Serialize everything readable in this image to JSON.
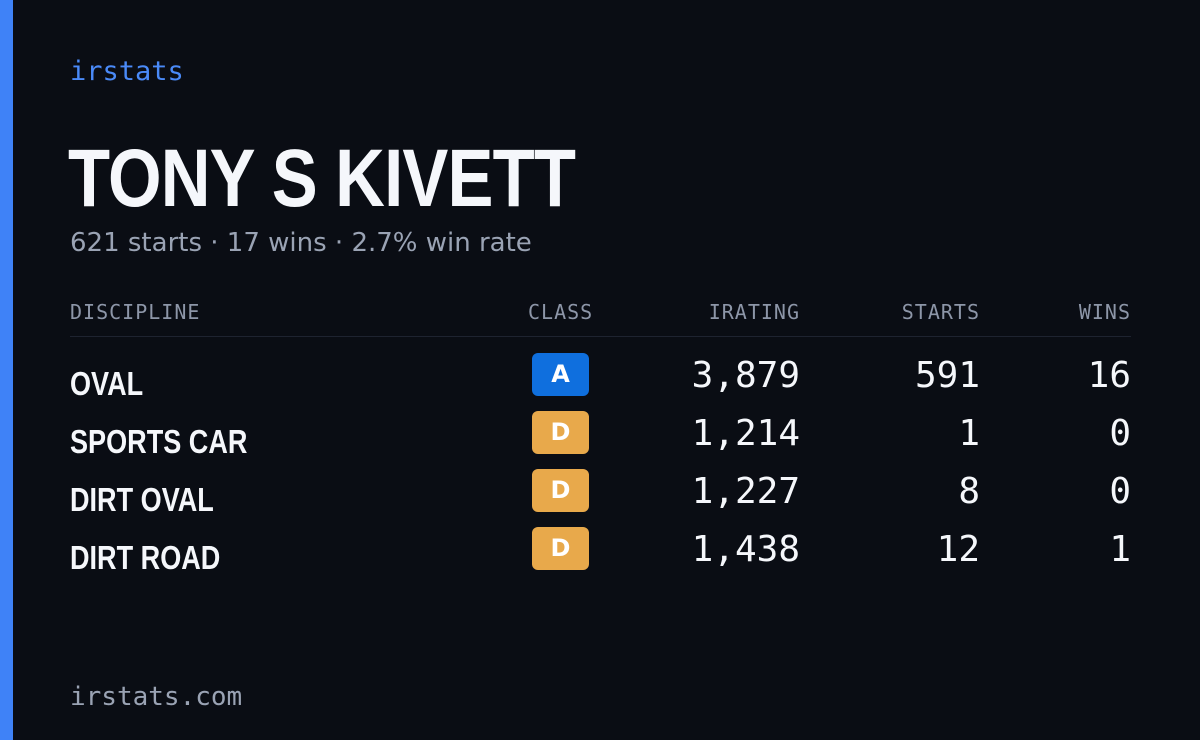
{
  "brand": {
    "name": "irstats",
    "url": "irstats.com"
  },
  "colors": {
    "accent": "#3f82f7",
    "background": "#0a0d14",
    "class_a": "#0f6fde",
    "class_d": "#e8a94b"
  },
  "driver": {
    "name": "TONY S KIVETT",
    "summary": "621 starts · 17 wins · 2.7% win rate"
  },
  "table": {
    "headers": {
      "discipline": "DISCIPLINE",
      "class": "CLASS",
      "irating": "IRATING",
      "starts": "STARTS",
      "wins": "WINS"
    },
    "rows": [
      {
        "discipline": "OVAL",
        "class": "A",
        "irating": "3,879",
        "starts": "591",
        "wins": "16"
      },
      {
        "discipline": "SPORTS CAR",
        "class": "D",
        "irating": "1,214",
        "starts": "1",
        "wins": "0"
      },
      {
        "discipline": "DIRT OVAL",
        "class": "D",
        "irating": "1,227",
        "starts": "8",
        "wins": "0"
      },
      {
        "discipline": "DIRT ROAD",
        "class": "D",
        "irating": "1,438",
        "starts": "12",
        "wins": "1"
      }
    ]
  }
}
